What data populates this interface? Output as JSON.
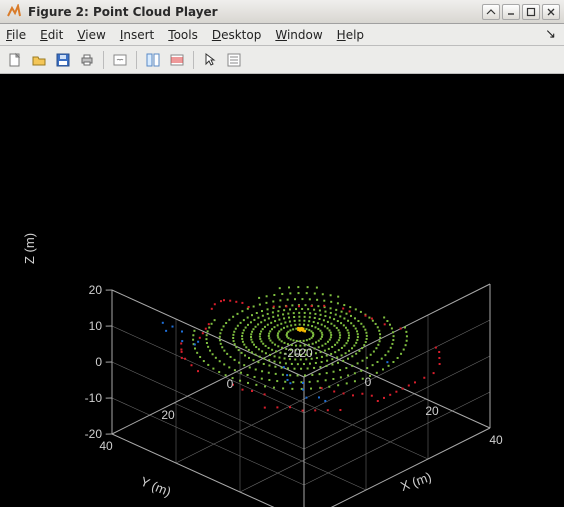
{
  "window": {
    "title": "Figure 2: Point Cloud Player"
  },
  "menu": {
    "items": [
      {
        "label": "File",
        "key": "F"
      },
      {
        "label": "Edit",
        "key": "E"
      },
      {
        "label": "View",
        "key": "V"
      },
      {
        "label": "Insert",
        "key": "I"
      },
      {
        "label": "Tools",
        "key": "T"
      },
      {
        "label": "Desktop",
        "key": "D"
      },
      {
        "label": "Window",
        "key": "W"
      },
      {
        "label": "Help",
        "key": "H"
      }
    ]
  },
  "toolbar": {
    "groups": [
      [
        "new",
        "open",
        "save",
        "print"
      ],
      [
        "link"
      ],
      [
        "datacursor",
        "colorbar"
      ],
      [
        "arrow",
        "properties"
      ]
    ]
  },
  "plot": {
    "type": "scatter3d",
    "background_color": "#000000",
    "grid_color": "#666666",
    "text_color": "#d0d0d0",
    "label_fontsize": 13,
    "tick_fontsize": 12,
    "x": {
      "label": "X (m)",
      "lim": [
        -20,
        40
      ],
      "ticks": [
        -20,
        0,
        20,
        40
      ]
    },
    "y": {
      "label": "Y (m)",
      "lim": [
        -20,
        40
      ],
      "ticks": [
        -20,
        0,
        20,
        40
      ]
    },
    "z": {
      "label": "Z (m)",
      "lim": [
        -20,
        20
      ],
      "ticks": [
        -20,
        -10,
        0,
        10,
        20
      ]
    },
    "colors": {
      "ground": "#7fbf3f",
      "obstacle": "#d81e2c",
      "ego": "#f5b800",
      "far": "#1f6fd8"
    },
    "series": {
      "far": {
        "color": "#1f6fd8",
        "marker": "square",
        "marker_size": 2,
        "points": [
          [
            -8,
            36,
            14
          ],
          [
            -6,
            37,
            13
          ],
          [
            -4,
            37,
            15
          ],
          [
            -2,
            36,
            14
          ],
          [
            0,
            38,
            13
          ],
          [
            2,
            36,
            12
          ],
          [
            4,
            37,
            14
          ],
          [
            24,
            30,
            12
          ],
          [
            26,
            31,
            11
          ],
          [
            28,
            32,
            10
          ],
          [
            30,
            30,
            10
          ],
          [
            31,
            31,
            9
          ],
          [
            33,
            32,
            8
          ],
          [
            35,
            30,
            8
          ],
          [
            36,
            29,
            7
          ],
          [
            37,
            10,
            10
          ],
          [
            30,
            35,
            13
          ]
        ]
      },
      "obstacle": {
        "color": "#d81e2c",
        "marker": "square",
        "marker_size": 2,
        "points": [
          [
            -18,
            -2,
            -2
          ],
          [
            -18,
            0,
            0
          ],
          [
            -17,
            3,
            2
          ],
          [
            -16,
            6,
            4
          ],
          [
            -16,
            8,
            5
          ],
          [
            -15,
            10,
            6
          ],
          [
            -15,
            12,
            6
          ],
          [
            -14,
            14,
            6
          ],
          [
            -10,
            28,
            4
          ],
          [
            -8,
            30,
            4
          ],
          [
            -6,
            32,
            5
          ],
          [
            -4,
            34,
            5
          ],
          [
            -2,
            35,
            6
          ],
          [
            0,
            35,
            5
          ],
          [
            3,
            36,
            5
          ],
          [
            34,
            -8,
            -2
          ],
          [
            34,
            -5,
            -2
          ],
          [
            34,
            -2,
            -2
          ],
          [
            34,
            0,
            -2
          ],
          [
            34,
            2,
            -2
          ],
          [
            34,
            4,
            -2
          ],
          [
            34,
            6,
            -2
          ],
          [
            34,
            8,
            -2
          ],
          [
            34,
            10,
            -2
          ],
          [
            32,
            -12,
            -2
          ],
          [
            30,
            -14,
            -2
          ],
          [
            28,
            -16,
            -2
          ],
          [
            26,
            -17,
            -2
          ],
          [
            -2,
            -16,
            -2
          ],
          [
            0,
            -16,
            -2
          ],
          [
            4,
            -17,
            -2
          ],
          [
            6,
            -17,
            -2
          ],
          [
            10,
            -17,
            -2
          ],
          [
            14,
            -18,
            -2
          ],
          [
            20,
            32,
            0
          ],
          [
            22,
            30,
            0
          ],
          [
            24,
            28,
            0
          ],
          [
            26,
            26,
            -1
          ],
          [
            28,
            24,
            -1
          ],
          [
            30,
            22,
            -1
          ],
          [
            32,
            20,
            -1
          ],
          [
            -14,
            -6,
            -2
          ],
          [
            -12,
            -8,
            -2
          ],
          [
            -10,
            -10,
            -2
          ],
          [
            -8,
            -12,
            -2
          ],
          [
            -6,
            -14,
            -2
          ],
          [
            12,
            34,
            4
          ],
          [
            14,
            33,
            3
          ],
          [
            16,
            32,
            3
          ],
          [
            18,
            30,
            2
          ],
          [
            30,
            24,
            6
          ],
          [
            32,
            22,
            5
          ],
          [
            33,
            20,
            4
          ],
          [
            34,
            18,
            3
          ],
          [
            35,
            16,
            3
          ],
          [
            36,
            14,
            2
          ],
          [
            -13,
            16,
            3
          ],
          [
            -12,
            18,
            3
          ],
          [
            -11,
            20,
            3
          ],
          [
            -10,
            22,
            3
          ]
        ]
      },
      "ground": {
        "color": "#7fbf3f",
        "marker": "square",
        "marker_size": 2,
        "rings": [
          {
            "r": 3,
            "z": -1.6,
            "n": 24
          },
          {
            "r": 5,
            "z": -1.7,
            "n": 32
          },
          {
            "r": 7,
            "z": -1.8,
            "n": 40
          },
          {
            "r": 9,
            "z": -1.9,
            "n": 48
          },
          {
            "r": 11,
            "z": -2.0,
            "n": 56
          },
          {
            "r": 13,
            "z": -2.1,
            "n": 60
          },
          {
            "r": 15,
            "z": -2.2,
            "n": 64
          },
          {
            "r": 18,
            "z": -2.3,
            "n": 68
          },
          {
            "r": 21,
            "z": -2.4,
            "n": 72
          },
          {
            "r": 24,
            "z": -2.5,
            "n": 72
          }
        ]
      },
      "ego": {
        "color": "#f5b800",
        "marker": "square",
        "marker_size": 2.5,
        "points": [
          [
            0,
            0,
            0
          ],
          [
            0.5,
            0,
            0
          ],
          [
            1,
            0,
            0
          ],
          [
            1.5,
            0,
            0
          ],
          [
            0,
            0.5,
            0
          ],
          [
            0,
            -0.5,
            0
          ],
          [
            -0.5,
            0,
            0
          ],
          [
            0.5,
            0.5,
            0
          ],
          [
            0.5,
            -0.5,
            0
          ]
        ]
      }
    }
  }
}
